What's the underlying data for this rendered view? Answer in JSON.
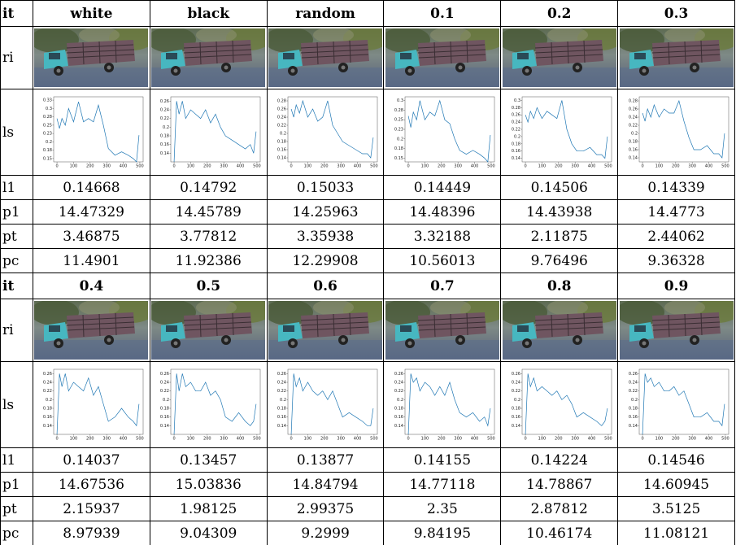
{
  "blocks": [
    {
      "header": [
        "it",
        "white",
        "black",
        "random",
        "0.1",
        "0.2",
        "0.3"
      ],
      "image_label": "ri",
      "chart_label": "ls",
      "charts": [
        {
          "type": "line",
          "xlim": [
            -20,
            520
          ],
          "ylim": [
            0.14,
            0.335
          ],
          "xticks": [
            0,
            100,
            200,
            300,
            400,
            500
          ],
          "yticks": [
            0.15,
            {
              "value": 0.175,
              "label": "0.18"
            },
            0.2,
            {
              "value": 0.225,
              "label": "0.23"
            },
            0.25,
            {
              "value": 0.275,
              "label": "0.28"
            },
            0.3,
            {
              "value": 0.325,
              "label": "0.33"
            }
          ],
          "x": [
            0,
            15,
            30,
            50,
            70,
            100,
            130,
            160,
            190,
            220,
            250,
            280,
            310,
            350,
            390,
            430,
            460,
            480,
            495
          ],
          "values": [
            0.27,
            0.24,
            0.27,
            0.25,
            0.3,
            0.26,
            0.32,
            0.26,
            0.27,
            0.26,
            0.31,
            0.25,
            0.18,
            0.16,
            0.17,
            0.16,
            0.15,
            0.14,
            0.22
          ]
        },
        {
          "type": "line",
          "xlim": [
            -20,
            520
          ],
          "ylim": [
            0.12,
            0.27
          ],
          "xticks": [
            0,
            100,
            200,
            300,
            400,
            500
          ],
          "yticks": [
            0.14,
            0.16,
            0.18,
            0.2,
            0.22,
            0.24,
            0.26
          ],
          "x": [
            0,
            15,
            30,
            50,
            70,
            100,
            130,
            160,
            190,
            220,
            250,
            280,
            310,
            350,
            390,
            430,
            460,
            480,
            495
          ],
          "values": [
            0.12,
            0.26,
            0.23,
            0.26,
            0.22,
            0.24,
            0.23,
            0.22,
            0.24,
            0.21,
            0.23,
            0.2,
            0.18,
            0.17,
            0.16,
            0.15,
            0.16,
            0.14,
            0.19
          ]
        },
        {
          "type": "line",
          "xlim": [
            -20,
            520
          ],
          "ylim": [
            0.13,
            0.29
          ],
          "xticks": [
            0,
            100,
            200,
            300,
            400,
            500
          ],
          "yticks": [
            0.14,
            0.16,
            0.18,
            0.2,
            0.22,
            0.24,
            0.26,
            0.28
          ],
          "x": [
            0,
            15,
            30,
            50,
            70,
            100,
            130,
            160,
            190,
            220,
            250,
            280,
            310,
            350,
            390,
            430,
            460,
            480,
            495
          ],
          "values": [
            0.26,
            0.24,
            0.27,
            0.25,
            0.28,
            0.24,
            0.26,
            0.23,
            0.24,
            0.28,
            0.22,
            0.2,
            0.18,
            0.17,
            0.16,
            0.15,
            0.15,
            0.14,
            0.19
          ]
        },
        {
          "type": "line",
          "xlim": [
            -20,
            520
          ],
          "ylim": [
            0.14,
            0.31
          ],
          "xticks": [
            0,
            100,
            200,
            300,
            400,
            500
          ],
          "yticks": [
            0.15,
            {
              "value": 0.175,
              "label": "0.18"
            },
            0.2,
            {
              "value": 0.225,
              "label": "0.23"
            },
            0.25,
            {
              "value": 0.275,
              "label": "0.28"
            },
            0.3
          ],
          "x": [
            0,
            15,
            30,
            50,
            70,
            100,
            130,
            160,
            190,
            220,
            250,
            280,
            310,
            350,
            390,
            430,
            460,
            480,
            495
          ],
          "values": [
            0.26,
            0.23,
            0.27,
            0.25,
            0.3,
            0.25,
            0.27,
            0.26,
            0.3,
            0.25,
            0.24,
            0.2,
            0.17,
            0.16,
            0.17,
            0.16,
            0.15,
            0.14,
            0.21
          ]
        },
        {
          "type": "line",
          "xlim": [
            -20,
            520
          ],
          "ylim": [
            0.13,
            0.31
          ],
          "xticks": [
            0,
            100,
            200,
            300,
            400,
            500
          ],
          "yticks": [
            0.14,
            0.16,
            0.18,
            0.2,
            0.22,
            0.24,
            0.26,
            0.28,
            0.3
          ],
          "x": [
            0,
            15,
            30,
            50,
            70,
            100,
            130,
            160,
            190,
            220,
            250,
            280,
            310,
            350,
            390,
            430,
            460,
            480,
            495
          ],
          "values": [
            0.26,
            0.24,
            0.27,
            0.25,
            0.28,
            0.25,
            0.27,
            0.26,
            0.25,
            0.3,
            0.22,
            0.18,
            0.16,
            0.16,
            0.17,
            0.15,
            0.15,
            0.14,
            0.2
          ]
        },
        {
          "type": "line",
          "xlim": [
            -20,
            520
          ],
          "ylim": [
            0.13,
            0.29
          ],
          "xticks": [
            0,
            100,
            200,
            300,
            400,
            500
          ],
          "yticks": [
            0.14,
            0.16,
            0.18,
            0.2,
            0.22,
            0.24,
            0.26,
            0.28
          ],
          "x": [
            0,
            15,
            30,
            50,
            70,
            100,
            130,
            160,
            190,
            220,
            250,
            280,
            310,
            350,
            390,
            430,
            460,
            480,
            495
          ],
          "values": [
            0.25,
            0.23,
            0.26,
            0.24,
            0.27,
            0.24,
            0.26,
            0.25,
            0.25,
            0.28,
            0.23,
            0.19,
            0.16,
            0.16,
            0.17,
            0.15,
            0.15,
            0.14,
            0.2
          ]
        }
      ],
      "rows": [
        [
          "l1",
          "0.14668",
          "0.14792",
          "0.15033",
          "0.14449",
          "0.14506",
          "0.14339"
        ],
        [
          "p1",
          "14.47329",
          "14.45789",
          "14.25963",
          "14.48396",
          "14.43938",
          "14.4773"
        ],
        [
          "pt",
          "3.46875",
          "3.77812",
          "3.35938",
          "3.32188",
          "2.11875",
          "2.44062"
        ],
        [
          "pc",
          "11.4901",
          "11.92386",
          "12.29908",
          "10.56013",
          "9.76496",
          "9.36328"
        ]
      ]
    },
    {
      "header": [
        "it",
        "0.4",
        "0.5",
        "0.6",
        "0.7",
        "0.8",
        "0.9"
      ],
      "image_label": "ri",
      "chart_label": "ls",
      "charts": [
        {
          "type": "line",
          "xlim": [
            -20,
            520
          ],
          "ylim": [
            0.12,
            0.27
          ],
          "xticks": [
            0,
            100,
            200,
            300,
            400,
            500
          ],
          "yticks": [
            0.14,
            0.16,
            0.18,
            0.2,
            0.22,
            0.24,
            0.26
          ],
          "x": [
            0,
            15,
            30,
            50,
            70,
            100,
            130,
            160,
            190,
            220,
            250,
            280,
            310,
            350,
            390,
            430,
            460,
            480,
            495
          ],
          "values": [
            0.12,
            0.26,
            0.23,
            0.26,
            0.22,
            0.24,
            0.23,
            0.22,
            0.25,
            0.21,
            0.23,
            0.19,
            0.15,
            0.16,
            0.18,
            0.16,
            0.15,
            0.14,
            0.19
          ]
        },
        {
          "type": "line",
          "xlim": [
            -20,
            520
          ],
          "ylim": [
            0.12,
            0.27
          ],
          "xticks": [
            0,
            100,
            200,
            300,
            400,
            500
          ],
          "yticks": [
            0.14,
            0.16,
            0.18,
            0.2,
            0.22,
            0.24,
            0.26
          ],
          "x": [
            0,
            15,
            30,
            50,
            70,
            100,
            130,
            160,
            190,
            220,
            250,
            280,
            310,
            350,
            390,
            430,
            460,
            480,
            495
          ],
          "values": [
            0.12,
            0.26,
            0.22,
            0.26,
            0.23,
            0.24,
            0.22,
            0.22,
            0.24,
            0.21,
            0.22,
            0.2,
            0.16,
            0.15,
            0.17,
            0.15,
            0.14,
            0.15,
            0.19
          ]
        },
        {
          "type": "line",
          "xlim": [
            -20,
            520
          ],
          "ylim": [
            0.12,
            0.27
          ],
          "xticks": [
            0,
            100,
            200,
            300,
            400,
            500
          ],
          "yticks": [
            0.14,
            0.16,
            0.18,
            0.2,
            0.22,
            0.24,
            0.26
          ],
          "x": [
            0,
            15,
            30,
            50,
            70,
            100,
            130,
            160,
            190,
            220,
            250,
            280,
            310,
            350,
            390,
            430,
            460,
            480,
            495
          ],
          "values": [
            0.12,
            0.26,
            0.23,
            0.25,
            0.22,
            0.24,
            0.22,
            0.21,
            0.22,
            0.2,
            0.22,
            0.19,
            0.16,
            0.17,
            0.16,
            0.15,
            0.14,
            0.14,
            0.18
          ]
        },
        {
          "type": "line",
          "xlim": [
            -20,
            520
          ],
          "ylim": [
            0.12,
            0.27
          ],
          "xticks": [
            0,
            100,
            200,
            300,
            400,
            500
          ],
          "yticks": [
            0.14,
            0.16,
            0.18,
            0.2,
            0.22,
            0.24,
            0.26
          ],
          "x": [
            0,
            15,
            30,
            50,
            70,
            100,
            130,
            160,
            190,
            220,
            250,
            280,
            310,
            350,
            390,
            430,
            460,
            480,
            495
          ],
          "values": [
            0.12,
            0.26,
            0.24,
            0.25,
            0.22,
            0.24,
            0.23,
            0.21,
            0.23,
            0.21,
            0.24,
            0.2,
            0.17,
            0.16,
            0.17,
            0.15,
            0.16,
            0.14,
            0.18
          ]
        },
        {
          "type": "line",
          "xlim": [
            -20,
            520
          ],
          "ylim": [
            0.12,
            0.27
          ],
          "xticks": [
            0,
            100,
            200,
            300,
            400,
            500
          ],
          "yticks": [
            0.14,
            0.16,
            0.18,
            0.2,
            0.22,
            0.24,
            0.26
          ],
          "x": [
            0,
            15,
            30,
            50,
            70,
            100,
            130,
            160,
            190,
            220,
            250,
            280,
            310,
            350,
            390,
            430,
            460,
            480,
            495
          ],
          "values": [
            0.12,
            0.26,
            0.23,
            0.25,
            0.22,
            0.23,
            0.22,
            0.21,
            0.22,
            0.2,
            0.21,
            0.19,
            0.16,
            0.17,
            0.16,
            0.15,
            0.14,
            0.15,
            0.18
          ]
        },
        {
          "type": "line",
          "xlim": [
            -20,
            520
          ],
          "ylim": [
            0.12,
            0.27
          ],
          "xticks": [
            0,
            100,
            200,
            300,
            400,
            500
          ],
          "yticks": [
            0.14,
            0.16,
            0.18,
            0.2,
            0.22,
            0.24,
            0.26
          ],
          "x": [
            0,
            15,
            30,
            50,
            70,
            100,
            130,
            160,
            190,
            220,
            250,
            280,
            310,
            350,
            390,
            430,
            460,
            480,
            495
          ],
          "values": [
            0.12,
            0.26,
            0.24,
            0.25,
            0.23,
            0.24,
            0.22,
            0.22,
            0.23,
            0.21,
            0.22,
            0.19,
            0.16,
            0.16,
            0.17,
            0.15,
            0.15,
            0.14,
            0.19
          ]
        }
      ],
      "rows": [
        [
          "l1",
          "0.14037",
          "0.13457",
          "0.13877",
          "0.14155",
          "0.14224",
          "0.14546"
        ],
        [
          "p1",
          "14.67536",
          "15.03836",
          "14.84794",
          "14.77118",
          "14.78867",
          "14.60945"
        ],
        [
          "pt",
          "2.15937",
          "1.98125",
          "2.99375",
          "2.35",
          "2.87812",
          "3.5125"
        ],
        [
          "pc",
          "8.97939",
          "9.04309",
          "9.2999",
          "9.84195",
          "10.46174",
          "11.08121"
        ]
      ]
    }
  ]
}
